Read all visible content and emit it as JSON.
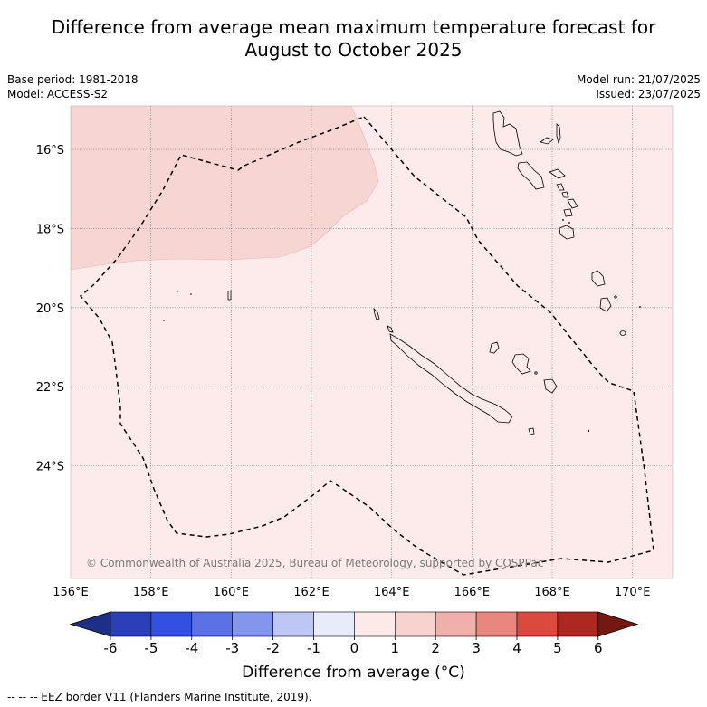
{
  "title": {
    "line1": "Difference from average mean maximum temperature forecast for",
    "line2": "August to October 2025"
  },
  "meta_left": {
    "base_period": "Base period: 1981-2018",
    "model": "Model: ACCESS-S2"
  },
  "meta_right": {
    "model_run": "Model run: 21/07/2025",
    "issued": "Issued: 23/07/2025"
  },
  "map": {
    "background_color": "#fcebea",
    "region_color": "#f6d5d3",
    "lon_range": [
      156,
      171
    ],
    "lat_range": [
      -26.85,
      -14.9
    ],
    "lon_ticks": [
      "156°E",
      "158°E",
      "160°E",
      "162°E",
      "164°E",
      "166°E",
      "168°E",
      "170°E"
    ],
    "lat_ticks": [
      "16°S",
      "18°S",
      "20°S",
      "22°S",
      "24°S"
    ],
    "copyright": "© Commonwealth of Australia 2025, Bureau of Meteorology, supported by COSPPac"
  },
  "colorbar": {
    "colors": [
      "#1d2f86",
      "#2a3fb8",
      "#3350e3",
      "#5a72e6",
      "#8496ec",
      "#bec6f4",
      "#e8ebfa",
      "#fdeae8",
      "#f7d3d0",
      "#efb0ab",
      "#e9867e",
      "#dc4a3f",
      "#ad2821",
      "#741812"
    ],
    "ticks": [
      "-6",
      "-5",
      "-4",
      "-3",
      "-2",
      "-1",
      "0",
      "1",
      "2",
      "3",
      "4",
      "5",
      "6"
    ],
    "label": "Difference from average (°C)"
  },
  "footnote": "--  --  -- EEZ border V11 (Flanders Marine Institute, 2019)."
}
